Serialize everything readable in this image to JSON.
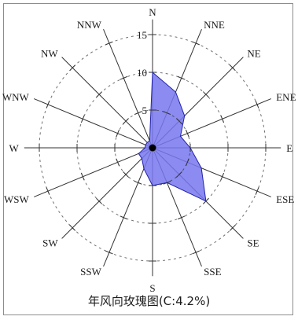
{
  "chart_data": {
    "type": "wind-rose",
    "title": "",
    "caption": "年风向玫瑰图(C:4.2%)",
    "directions": [
      "N",
      "NNE",
      "NE",
      "ENE",
      "E",
      "ESE",
      "SE",
      "SSE",
      "S",
      "SSW",
      "SW",
      "WSW",
      "W",
      "WNW",
      "NW",
      "NNW"
    ],
    "values": [
      10,
      8,
      6,
      4,
      5,
      7,
      10,
      5,
      5,
      3,
      2,
      2,
      1,
      1,
      1,
      1
    ],
    "radial_ticks": [
      5,
      10,
      15
    ],
    "rlim": [
      0,
      17
    ],
    "colors": {
      "fill": "#7777ee",
      "stroke": "#2222aa",
      "axis": "#333333",
      "text": "#1a1a1a"
    }
  }
}
